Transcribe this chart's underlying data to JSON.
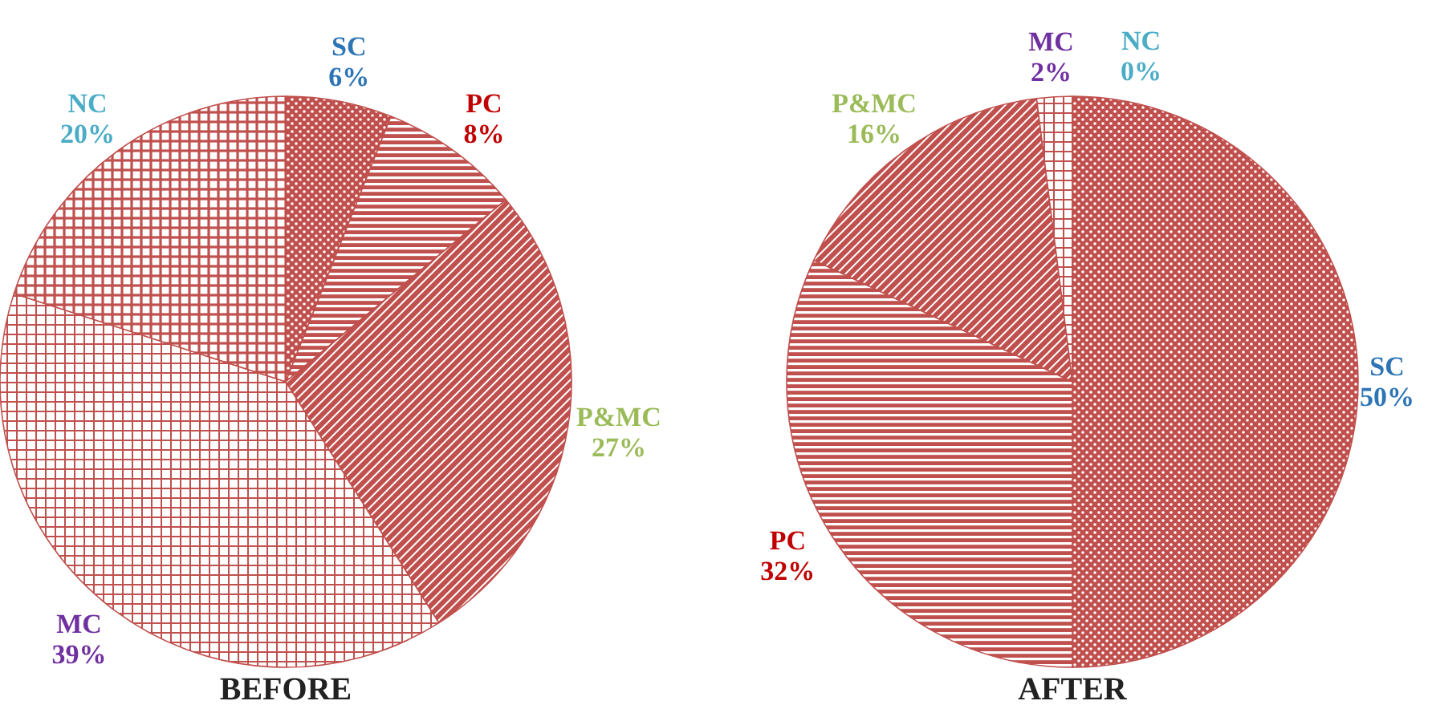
{
  "chart_data": [
    {
      "type": "pie",
      "title": "BEFORE",
      "categories": [
        "SC",
        "PC",
        "P&MC",
        "MC",
        "NC"
      ],
      "values": [
        6,
        8,
        27,
        39,
        20
      ],
      "value_labels": [
        "6%",
        "8%",
        "27%",
        "39%",
        "20%"
      ],
      "colors": [
        "#c0504d",
        "#c0504d",
        "#c0504d",
        "#c0504d",
        "#c0504d"
      ],
      "data_labels": true
    },
    {
      "type": "pie",
      "title": "AFTER",
      "categories": [
        "SC",
        "PC",
        "P&MC",
        "MC",
        "NC"
      ],
      "values": [
        50,
        32,
        16,
        2,
        0
      ],
      "value_labels": [
        "50%",
        "32%",
        "16%",
        "2%",
        "0%"
      ],
      "colors": [
        "#c0504d",
        "#c0504d",
        "#c0504d",
        "#c0504d",
        "#c0504d"
      ],
      "data_labels": true
    }
  ]
}
